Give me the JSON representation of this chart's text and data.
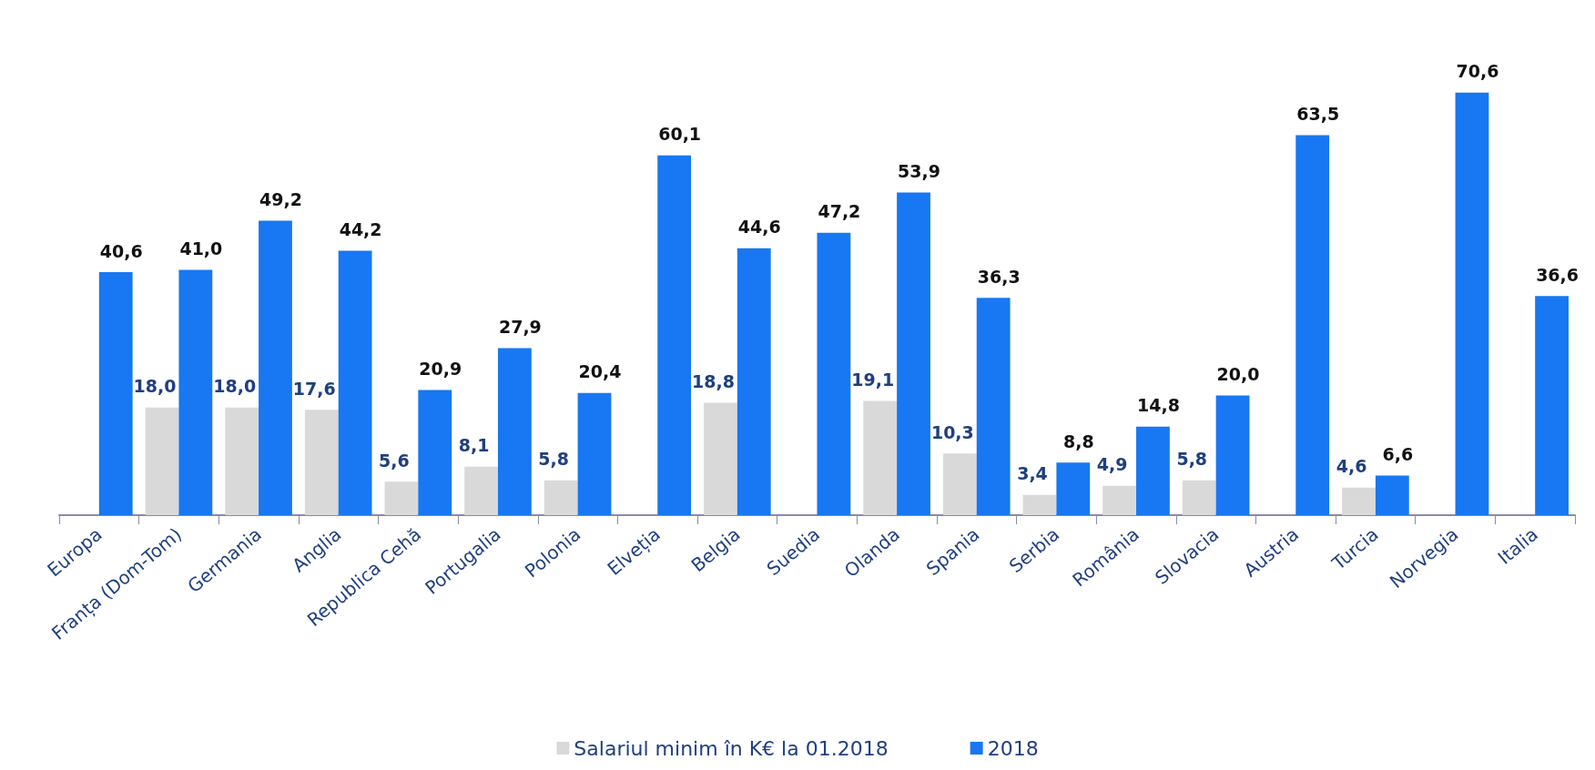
{
  "chart_data": {
    "type": "bar",
    "categories": [
      "Europa",
      "Franța (Dom-Tom)",
      "Germania",
      "Anglia",
      "Republica Cehă",
      "Portugalia",
      "Polonia",
      "Elveția",
      "Belgia",
      "Suedia",
      "Olanda",
      "Spania",
      "Serbia",
      "România",
      "Slovacia",
      "Austria",
      "Turcia",
      "Norvegia",
      "Italia"
    ],
    "series": [
      {
        "name": "Salariul minim în K€ la 01.2018",
        "color": "#d9d9d9",
        "values": [
          null,
          18.0,
          18.0,
          17.6,
          5.6,
          8.1,
          5.8,
          null,
          18.8,
          null,
          19.1,
          10.3,
          3.4,
          4.9,
          5.8,
          null,
          4.6,
          null,
          null
        ],
        "value_labels": [
          null,
          "18,0",
          "18,0",
          "17,6",
          "5,6",
          "8,1",
          "5,8",
          null,
          "18,8",
          null,
          "19,1",
          "10,3",
          "3,4",
          "4,9",
          "5,8",
          null,
          "4,6",
          null,
          null
        ]
      },
      {
        "name": "2018",
        "color": "#1877f2",
        "values": [
          40.6,
          41.0,
          49.2,
          44.2,
          20.9,
          27.9,
          20.4,
          60.1,
          44.6,
          47.2,
          53.9,
          36.3,
          8.8,
          14.8,
          20.0,
          63.5,
          6.6,
          70.6,
          36.6
        ],
        "value_labels": [
          "40,6",
          "41,0",
          "49,2",
          "44,2",
          "20,9",
          "27,9",
          "20,4",
          "60,1",
          "44,6",
          "47,2",
          "53,9",
          "36,3",
          "8,8",
          "14,8",
          "20,0",
          "63,5",
          "6,6",
          "70,6",
          "36,6"
        ]
      }
    ],
    "legend": "bottom",
    "grid": false
  }
}
